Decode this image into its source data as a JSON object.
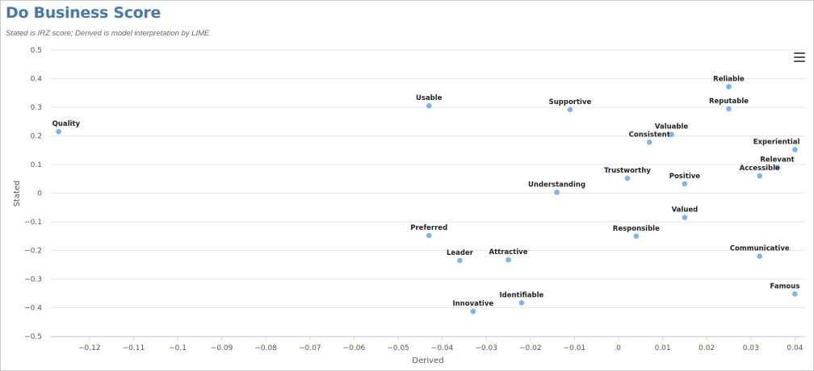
{
  "header": {
    "title": "Do Business Score",
    "subtitle": "Stated is IRZ score; Derived is model interpretation by LIME"
  },
  "menu_icon": "hamburger-menu-icon",
  "colors": {
    "point": "#7cb5ec",
    "title": "#4a78a8",
    "grid": "#e6e6e6"
  },
  "chart_data": {
    "type": "scatter",
    "title": "Do Business Score",
    "subtitle": "Stated is IRZ score; Derived is model interpretation by LIME",
    "xlabel": "Derived",
    "ylabel": "Stated",
    "xlim": [
      -0.13,
      0.041
    ],
    "ylim": [
      -0.5,
      0.5
    ],
    "xticks": [
      -0.12,
      -0.11,
      -0.1,
      -0.09,
      -0.08,
      -0.07,
      -0.06,
      -0.05,
      -0.04,
      -0.03,
      -0.02,
      -0.01,
      0,
      0.01,
      0.02,
      0.03,
      0.04
    ],
    "xtick_labels": [
      "−0.12",
      "−0.11",
      "−0.1",
      "−0.09",
      "−0.08",
      "−0.07",
      "−0.06",
      "−0.05",
      "−0.04",
      "−0.03",
      "−0.02",
      "−0.01",
      "0",
      "0.01",
      "0.02",
      "0.03",
      "0.04"
    ],
    "yticks": [
      0.5,
      0.4,
      0.3,
      0.2,
      0.1,
      0,
      -0.1,
      -0.2,
      -0.3,
      -0.4,
      -0.5
    ],
    "ytick_labels": [
      "0.5",
      "0.4",
      "0.3",
      "0.2",
      "0.1",
      "0",
      "−0.1",
      "−0.2",
      "−0.3",
      "−0.4",
      "−0.5"
    ],
    "grid": "horizontal",
    "points": [
      {
        "label": "Quality",
        "x": -0.127,
        "y": 0.215
      },
      {
        "label": "Usable",
        "x": -0.043,
        "y": 0.305
      },
      {
        "label": "Supportive",
        "x": -0.011,
        "y": 0.292
      },
      {
        "label": "Reliable",
        "x": 0.025,
        "y": 0.372
      },
      {
        "label": "Reputable",
        "x": 0.025,
        "y": 0.295
      },
      {
        "label": "Valuable",
        "x": 0.012,
        "y": 0.205
      },
      {
        "label": "Consistent",
        "x": 0.007,
        "y": 0.178
      },
      {
        "label": "Experiential",
        "x": 0.04,
        "y": 0.152
      },
      {
        "label": "Relevant",
        "x": 0.036,
        "y": 0.09
      },
      {
        "label": "Accessible",
        "x": 0.032,
        "y": 0.06
      },
      {
        "label": "Trustworthy",
        "x": 0.002,
        "y": 0.052
      },
      {
        "label": "Positive",
        "x": 0.015,
        "y": 0.033
      },
      {
        "label": "Understanding",
        "x": -0.014,
        "y": 0.003
      },
      {
        "label": "Valued",
        "x": 0.015,
        "y": -0.085
      },
      {
        "label": "Responsible",
        "x": 0.004,
        "y": -0.15
      },
      {
        "label": "Preferred",
        "x": -0.043,
        "y": -0.148
      },
      {
        "label": "Leader",
        "x": -0.036,
        "y": -0.235
      },
      {
        "label": "Attractive",
        "x": -0.025,
        "y": -0.233
      },
      {
        "label": "Communicative",
        "x": 0.032,
        "y": -0.22
      },
      {
        "label": "Famous",
        "x": 0.04,
        "y": -0.352
      },
      {
        "label": "Identifiable",
        "x": -0.022,
        "y": -0.383
      },
      {
        "label": "Innovative",
        "x": -0.033,
        "y": -0.413
      }
    ]
  }
}
